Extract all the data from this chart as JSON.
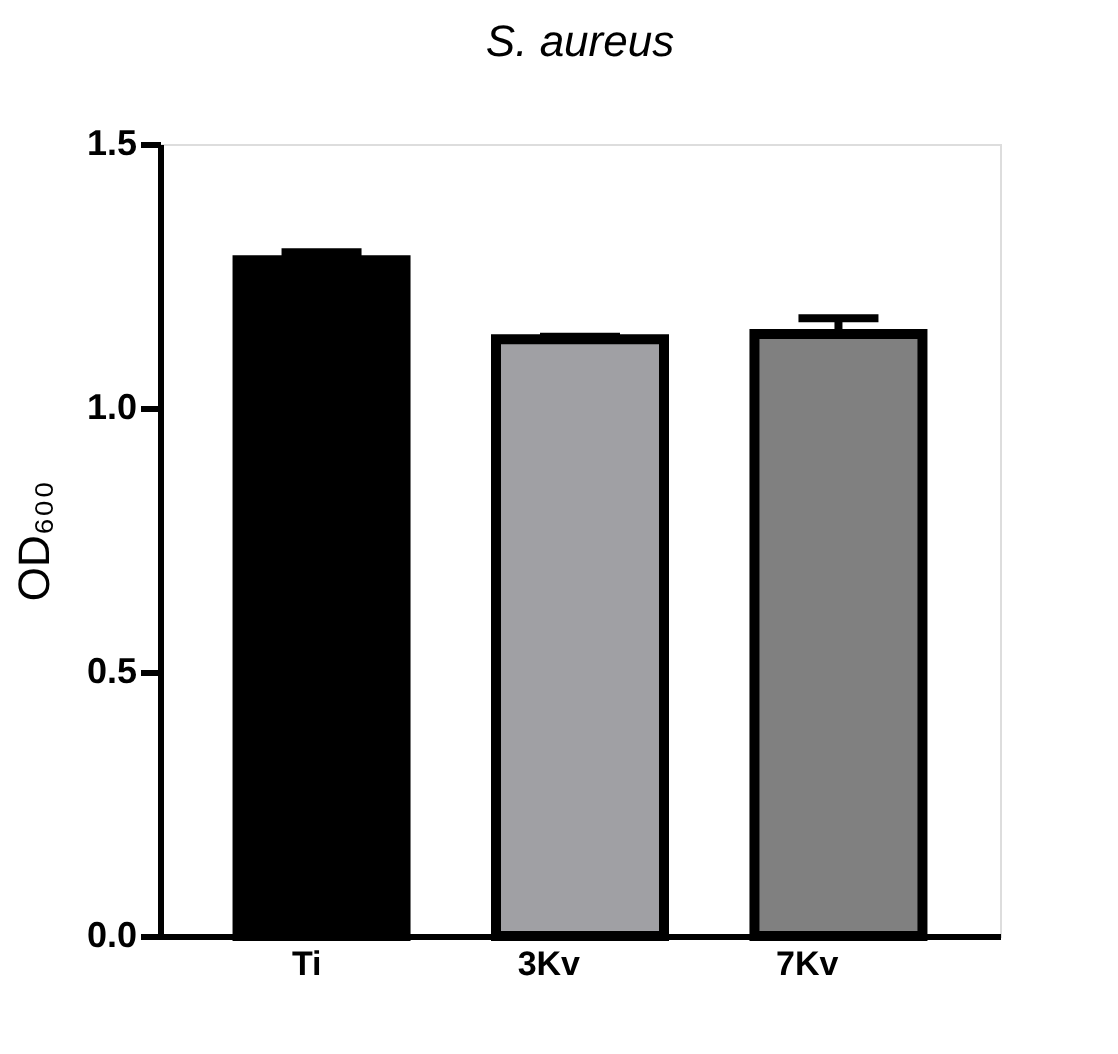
{
  "chart_data": {
    "type": "bar",
    "title": "S. aureus",
    "ylabel": "OD₆₀₀",
    "categories": [
      "Ti",
      "3Kv",
      "7Kv"
    ],
    "values": [
      1.28,
      1.13,
      1.14
    ],
    "colors": [
      "#000000",
      "#a0a0a4",
      "#808080"
    ],
    "errors": [
      [
        1.28,
        1.295
      ],
      [
        1.13,
        1.135
      ],
      [
        1.14,
        1.17
      ]
    ],
    "ylim": [
      0,
      1.5
    ],
    "yticks": [
      {
        "value": 0,
        "label": "0.0"
      },
      {
        "value": 0.5,
        "label": "0.5"
      },
      {
        "value": 1.0,
        "label": "1.0"
      },
      {
        "value": 1.5,
        "label": "1.5"
      }
    ],
    "grid": false
  }
}
